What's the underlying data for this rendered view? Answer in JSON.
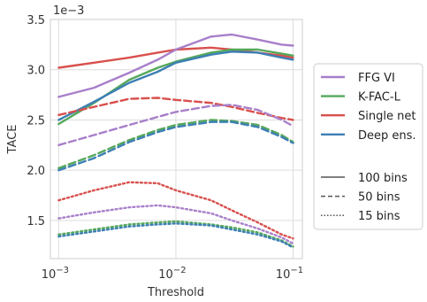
{
  "chart_data": {
    "type": "line",
    "xlabel": "Threshold",
    "ylabel": "TACE",
    "x_scale": "log",
    "xlim": [
      0.00085,
      0.12
    ],
    "ylim": [
      1.12,
      3.5
    ],
    "y_offset_label": "1e−3",
    "x_ticks": [
      0.001,
      0.01,
      0.1
    ],
    "x_tick_labels": [
      {
        "base": "10",
        "exp": "−3"
      },
      {
        "base": "10",
        "exp": "−2"
      },
      {
        "base": "10",
        "exp": "−1"
      }
    ],
    "y_ticks": [
      1.5,
      2.0,
      2.5,
      3.0,
      3.5
    ],
    "y_tick_labels": [
      "1.5",
      "2.0",
      "2.5",
      "3.0",
      "3.5"
    ],
    "grid": true,
    "legend_position": "right",
    "methods": [
      {
        "name": "FFG VI",
        "color": "#a87fca"
      },
      {
        "name": "K-FAC-L",
        "color": "#55a85a"
      },
      {
        "name": "Single net",
        "color": "#d8504d"
      },
      {
        "name": "Deep ens.",
        "color": "#3d7fb5"
      }
    ],
    "bin_styles": [
      {
        "name": "100 bins",
        "dash": "solid"
      },
      {
        "name": "50 bins",
        "dash": "dashed"
      },
      {
        "name": "15 bins",
        "dash": "dotted"
      }
    ],
    "series": [
      {
        "method": 2,
        "style": 0,
        "x": [
          0.001,
          0.002,
          0.004,
          0.007,
          0.01,
          0.02,
          0.03,
          0.05,
          0.08,
          0.1
        ],
        "values": [
          3.02,
          3.07,
          3.12,
          3.17,
          3.2,
          3.22,
          3.2,
          3.17,
          3.14,
          3.12
        ]
      },
      {
        "method": 0,
        "style": 0,
        "x": [
          0.001,
          0.002,
          0.004,
          0.007,
          0.01,
          0.02,
          0.03,
          0.05,
          0.08,
          0.1
        ],
        "values": [
          2.73,
          2.82,
          2.97,
          3.1,
          3.2,
          3.33,
          3.35,
          3.3,
          3.25,
          3.24
        ]
      },
      {
        "method": 1,
        "style": 0,
        "x": [
          0.001,
          0.002,
          0.004,
          0.007,
          0.01,
          0.02,
          0.03,
          0.05,
          0.08,
          0.1
        ],
        "values": [
          2.46,
          2.67,
          2.9,
          3.02,
          3.08,
          3.17,
          3.2,
          3.2,
          3.16,
          3.14
        ]
      },
      {
        "method": 3,
        "style": 0,
        "x": [
          0.001,
          0.002,
          0.004,
          0.007,
          0.01,
          0.02,
          0.03,
          0.05,
          0.08,
          0.1
        ],
        "values": [
          2.5,
          2.68,
          2.87,
          2.98,
          3.07,
          3.15,
          3.18,
          3.17,
          3.12,
          3.1
        ]
      },
      {
        "method": 2,
        "style": 1,
        "x": [
          0.001,
          0.002,
          0.004,
          0.007,
          0.01,
          0.02,
          0.03,
          0.05,
          0.08,
          0.1
        ],
        "values": [
          2.55,
          2.63,
          2.71,
          2.72,
          2.7,
          2.67,
          2.63,
          2.57,
          2.52,
          2.5
        ]
      },
      {
        "method": 0,
        "style": 1,
        "x": [
          0.001,
          0.002,
          0.004,
          0.007,
          0.01,
          0.02,
          0.03,
          0.05,
          0.08,
          0.1
        ],
        "values": [
          2.25,
          2.35,
          2.45,
          2.53,
          2.58,
          2.64,
          2.65,
          2.6,
          2.5,
          2.44
        ]
      },
      {
        "method": 1,
        "style": 1,
        "x": [
          0.001,
          0.002,
          0.004,
          0.007,
          0.01,
          0.02,
          0.03,
          0.05,
          0.08,
          0.1
        ],
        "values": [
          2.02,
          2.15,
          2.3,
          2.4,
          2.45,
          2.5,
          2.49,
          2.45,
          2.35,
          2.28
        ]
      },
      {
        "method": 3,
        "style": 1,
        "x": [
          0.001,
          0.002,
          0.004,
          0.007,
          0.01,
          0.02,
          0.03,
          0.05,
          0.08,
          0.1
        ],
        "values": [
          2.0,
          2.12,
          2.28,
          2.38,
          2.43,
          2.48,
          2.48,
          2.43,
          2.33,
          2.27
        ]
      },
      {
        "method": 2,
        "style": 2,
        "x": [
          0.001,
          0.002,
          0.004,
          0.007,
          0.01,
          0.02,
          0.03,
          0.05,
          0.08,
          0.1
        ],
        "values": [
          1.7,
          1.8,
          1.88,
          1.87,
          1.8,
          1.7,
          1.6,
          1.48,
          1.36,
          1.32
        ]
      },
      {
        "method": 0,
        "style": 2,
        "x": [
          0.001,
          0.002,
          0.004,
          0.007,
          0.01,
          0.02,
          0.03,
          0.05,
          0.08,
          0.1
        ],
        "values": [
          1.52,
          1.58,
          1.63,
          1.65,
          1.63,
          1.57,
          1.5,
          1.42,
          1.33,
          1.27
        ]
      },
      {
        "method": 1,
        "style": 2,
        "x": [
          0.001,
          0.002,
          0.004,
          0.007,
          0.01,
          0.02,
          0.03,
          0.05,
          0.08,
          0.1
        ],
        "values": [
          1.36,
          1.41,
          1.46,
          1.48,
          1.49,
          1.46,
          1.43,
          1.38,
          1.3,
          1.24
        ]
      },
      {
        "method": 3,
        "style": 2,
        "x": [
          0.001,
          0.002,
          0.004,
          0.007,
          0.01,
          0.02,
          0.03,
          0.05,
          0.08,
          0.1
        ],
        "values": [
          1.34,
          1.39,
          1.44,
          1.46,
          1.47,
          1.45,
          1.41,
          1.36,
          1.29,
          1.23
        ]
      }
    ]
  }
}
